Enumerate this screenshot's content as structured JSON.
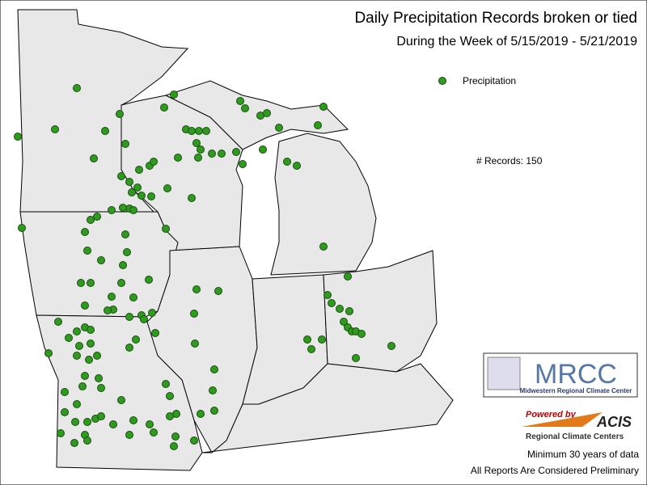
{
  "header": {
    "title": "Daily Precipitation Records broken or tied",
    "subtitle": "During the Week of 5/15/2019 - 5/21/2019"
  },
  "legend": {
    "label": "Precipitation"
  },
  "summary": "# Records: 150",
  "logos": {
    "mrcc": "MRCC",
    "mrcc_name": "Midwestern Regional Climate Center",
    "powered_by": "Powered by",
    "acis": "ACIS",
    "acis_name": "Regional Climate Centers"
  },
  "footer": {
    "note1": "Minimum 30 years of data",
    "note2": "All Reports Are Considered Preliminary"
  }
}
